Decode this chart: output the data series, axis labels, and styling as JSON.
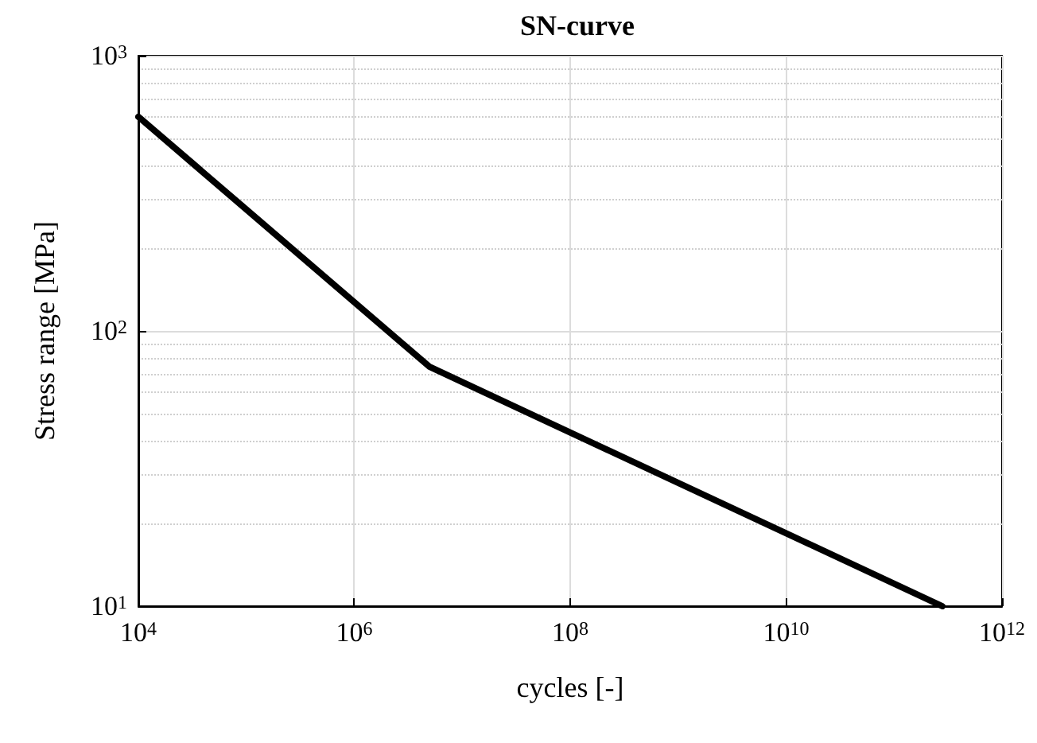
{
  "chart_data": {
    "type": "line",
    "title": "SN-curve",
    "xlabel": "cycles [-]",
    "ylabel": "Stress range [MPa]",
    "x": [
      10000,
      5000000,
      280000000000
    ],
    "series": [
      {
        "color": "#000000",
        "values": [
          600,
          74,
          10
        ]
      }
    ],
    "log": "xy",
    "grid": true,
    "marker": "none",
    "line_style": "solid",
    "xlim": [
      10000,
      1000000000000
    ],
    "ylim": [
      10,
      1000
    ],
    "xticks": [
      {
        "value": 10000,
        "label": "10$^{4}$"
      },
      {
        "value": 1000000,
        "label": "10$^{6}$"
      },
      {
        "value": 100000000,
        "label": "10$^{8}$"
      },
      {
        "value": 10000000000,
        "label": "10$^{10}$"
      },
      {
        "value": 1000000000000,
        "label": "10$^{12}$"
      }
    ],
    "yticks": [
      {
        "value": 10,
        "label": "10$^{1}$"
      },
      {
        "value": 100,
        "label": "10$^{2}$"
      },
      {
        "value": 1000,
        "label": "10$^{3}$"
      }
    ]
  }
}
